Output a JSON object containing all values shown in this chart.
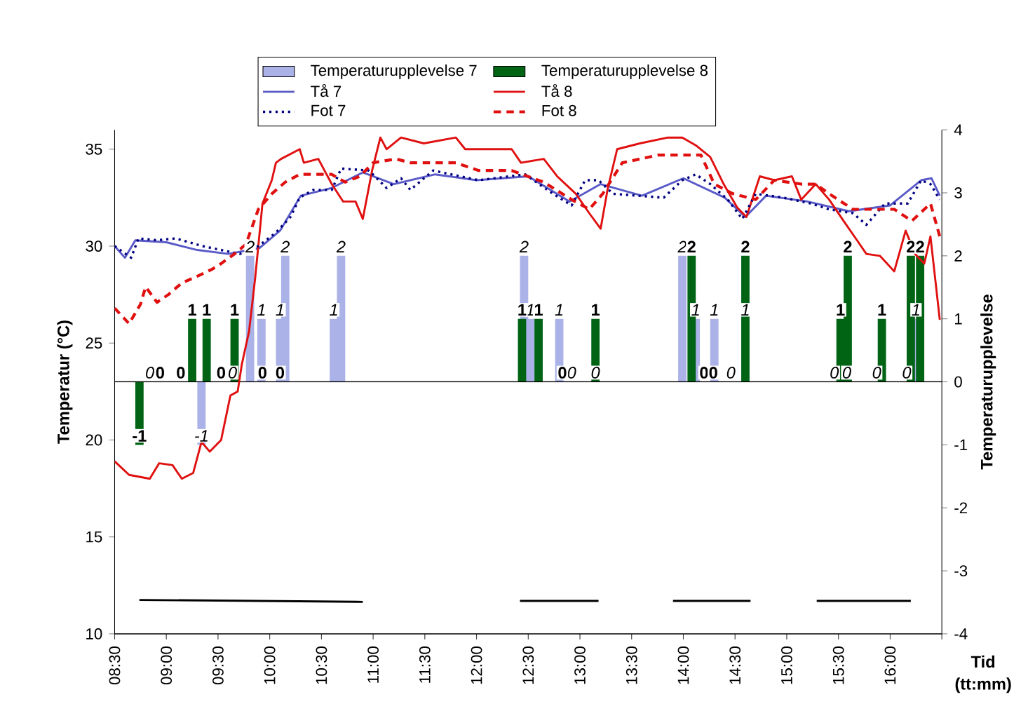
{
  "chart_data": {
    "type": "bar",
    "xlabel": "Tid (tt:mm)",
    "ylabel": "Temperatur (°C)",
    "y2label": "Temperaturupplevelse",
    "xlim": [
      8.5,
      16.5
    ],
    "xticks": [
      {
        "value": 8.5,
        "label": "08:30"
      },
      {
        "value": 9,
        "label": "09:00"
      },
      {
        "value": 9.5,
        "label": "09:30"
      },
      {
        "value": 10,
        "label": "10:00"
      },
      {
        "value": 10.5,
        "label": "10:30"
      },
      {
        "value": 11,
        "label": "11:00"
      },
      {
        "value": 11.5,
        "label": "11:30"
      },
      {
        "value": 12,
        "label": "12:00"
      },
      {
        "value": 12.5,
        "label": "12:30"
      },
      {
        "value": 13,
        "label": "13:00"
      },
      {
        "value": 13.5,
        "label": "13:30"
      },
      {
        "value": 14,
        "label": "14:00"
      },
      {
        "value": 14.5,
        "label": "14:30"
      },
      {
        "value": 15,
        "label": "15:00"
      },
      {
        "value": 15.5,
        "label": "15:30"
      },
      {
        "value": 16,
        "label": "16:00"
      },
      {
        "value": 16.5,
        "label": null
      }
    ],
    "ylim": [
      10,
      36
    ],
    "yticks": [
      10,
      15,
      20,
      25,
      30,
      35
    ],
    "y2lim": [
      -4,
      4
    ],
    "y2ticks": [
      -4,
      -3,
      -2,
      -1,
      0,
      1,
      2,
      3,
      4
    ],
    "legend": "top",
    "ref_lines": [
      {
        "axis": "y2",
        "value": 0,
        "color": "#000000"
      }
    ],
    "series": [
      {
        "name": "Temperaturupplevelse 7",
        "axis": "y2",
        "color": "#aab2e8",
        "x": [
          8.84,
          9.34,
          9.64,
          9.81,
          9.92,
          10.1,
          10.15,
          10.62,
          10.69,
          12.46,
          12.52,
          12.8,
          12.92,
          13.15,
          13.99,
          14.12,
          14.3,
          14.46,
          14.6,
          15.46,
          15.58,
          15.87,
          16.16,
          16.25
        ],
        "values": [
          0,
          -1,
          0,
          2,
          1,
          1,
          2,
          1,
          2,
          2,
          1,
          1,
          0,
          0,
          2,
          1,
          1,
          0,
          1,
          0,
          0,
          0,
          0,
          1
        ],
        "value_labels": [
          "0",
          "-1",
          "0",
          "2",
          "1",
          "1",
          "2",
          "1",
          "2",
          "2",
          "1",
          "1",
          "0",
          "0",
          "2",
          "1",
          "1",
          "0",
          "1",
          "0",
          "0",
          "0",
          "0",
          "1"
        ]
      },
      {
        "name": "Temperaturupplevelse 8",
        "axis": "y2",
        "color": "#006414",
        "x": [
          8.74,
          8.94,
          9.14,
          9.25,
          9.39,
          9.53,
          9.66,
          9.93,
          10.1,
          12.44,
          12.6,
          12.83,
          13.15,
          14.08,
          14.2,
          14.29,
          14.6,
          15.52,
          15.59,
          15.92,
          16.2,
          16.29
        ],
        "values": [
          -1,
          0,
          0,
          1,
          1,
          0,
          1,
          0,
          0,
          1,
          1,
          0,
          1,
          2,
          0,
          0,
          2,
          1,
          2,
          1,
          2,
          2
        ],
        "value_labels": [
          "-1",
          "0",
          "0",
          "1",
          "1",
          "0",
          "1",
          "0",
          "0",
          "1",
          "1",
          "0",
          "1",
          "2",
          "0",
          "0",
          "2",
          "1",
          "2",
          "1",
          "2",
          "2"
        ]
      },
      {
        "name": "Tå 7",
        "type": "line",
        "color": "#5a5ac8",
        "line_style": "solid",
        "x": [
          8.5,
          8.6,
          8.7,
          9.0,
          9.3,
          9.6,
          9.9,
          10.1,
          10.3,
          10.6,
          10.9,
          11.2,
          11.6,
          12.0,
          12.5,
          12.9,
          13.2,
          13.6,
          14.0,
          14.4,
          14.6,
          14.8,
          15.2,
          15.6,
          16.0,
          16.3,
          16.4,
          16.48
        ],
        "values": [
          30.0,
          29.4,
          30.3,
          30.2,
          29.8,
          29.6,
          29.9,
          30.8,
          32.6,
          33.0,
          33.8,
          33.2,
          33.7,
          33.4,
          33.6,
          32.3,
          33.2,
          32.6,
          33.5,
          32.5,
          31.5,
          32.6,
          32.3,
          31.8,
          32.1,
          33.4,
          33.5,
          32.6
        ]
      },
      {
        "name": "Tå 8",
        "type": "line",
        "color": "#e01010",
        "line_style": "solid",
        "x": [
          8.5,
          8.64,
          8.84,
          8.93,
          9.06,
          9.15,
          9.26,
          9.34,
          9.42,
          9.53,
          9.62,
          9.69,
          9.73,
          9.8,
          9.86,
          9.93,
          10.02,
          10.06,
          10.11,
          10.29,
          10.33,
          10.47,
          10.6,
          10.71,
          10.83,
          10.9,
          10.99,
          11.07,
          11.13,
          11.27,
          11.49,
          11.8,
          11.89,
          12.34,
          12.43,
          12.65,
          12.78,
          12.96,
          13.09,
          13.2,
          13.27,
          13.36,
          13.58,
          13.85,
          13.99,
          14.12,
          14.26,
          14.39,
          14.52,
          14.61,
          14.74,
          14.88,
          15.05,
          15.14,
          15.28,
          15.41,
          15.55,
          15.68,
          15.77,
          15.9,
          16.04,
          16.15,
          16.24,
          16.33,
          16.39,
          16.48
        ],
        "values": [
          18.9,
          18.2,
          18.0,
          18.8,
          18.7,
          18.0,
          18.3,
          19.9,
          19.4,
          20.0,
          22.3,
          22.5,
          23.9,
          25.6,
          28.4,
          32.2,
          33.4,
          34.3,
          34.5,
          35.0,
          34.3,
          34.5,
          33.2,
          32.3,
          32.3,
          31.4,
          33.9,
          35.6,
          35.0,
          35.6,
          35.3,
          35.6,
          35.0,
          35.0,
          34.3,
          34.5,
          33.6,
          32.7,
          31.7,
          30.9,
          33.0,
          35.0,
          35.3,
          35.6,
          35.6,
          35.2,
          34.6,
          33.2,
          32.0,
          31.5,
          33.6,
          33.4,
          33.6,
          32.4,
          33.2,
          32.4,
          31.3,
          30.3,
          29.6,
          29.5,
          28.7,
          30.8,
          29.6,
          29.1,
          30.5,
          26.2
        ]
      },
      {
        "name": "Fot 7",
        "type": "line",
        "color": "#000080",
        "line_style": "dotted",
        "x": [
          8.5,
          8.66,
          8.73,
          8.91,
          9.09,
          9.35,
          9.53,
          9.71,
          9.89,
          10.06,
          10.2,
          10.29,
          10.42,
          10.6,
          10.69,
          10.96,
          11.13,
          11.27,
          11.36,
          11.58,
          12.02,
          12.47,
          12.74,
          12.92,
          13.05,
          13.18,
          13.32,
          13.81,
          13.99,
          14.12,
          14.26,
          14.43,
          14.57,
          14.7,
          14.97,
          15.23,
          15.41,
          15.64,
          15.77,
          15.95,
          16.17,
          16.3,
          16.39,
          16.48
        ],
        "values": [
          30.0,
          29.4,
          30.4,
          30.3,
          30.4,
          30.0,
          29.8,
          29.6,
          30.0,
          30.7,
          31.5,
          32.5,
          32.9,
          32.9,
          34.0,
          33.9,
          33.0,
          33.5,
          32.9,
          33.9,
          33.4,
          33.7,
          32.7,
          32.1,
          33.4,
          33.4,
          32.7,
          32.5,
          33.4,
          33.7,
          33.2,
          32.4,
          31.4,
          32.7,
          32.5,
          32.2,
          31.9,
          31.7,
          31.1,
          32.2,
          32.2,
          33.4,
          33.2,
          32.4
        ]
      },
      {
        "name": "Fot 8",
        "type": "line",
        "color": "#e01010",
        "line_style": "dashed",
        "x": [
          8.5,
          8.64,
          8.75,
          8.8,
          8.91,
          9.02,
          9.15,
          9.28,
          9.44,
          9.53,
          9.66,
          9.77,
          9.89,
          10.02,
          10.15,
          10.29,
          10.6,
          10.73,
          10.87,
          11.0,
          11.22,
          11.36,
          11.8,
          12.02,
          12.34,
          12.65,
          12.92,
          13.09,
          13.22,
          13.41,
          13.76,
          14.17,
          14.3,
          14.48,
          14.7,
          14.88,
          15.14,
          15.28,
          15.41,
          15.64,
          15.86,
          16.04,
          16.21,
          16.39,
          16.48
        ],
        "values": [
          26.8,
          26.0,
          27.0,
          27.9,
          27.1,
          27.5,
          28.1,
          28.4,
          28.8,
          29.1,
          29.6,
          30.1,
          31.9,
          32.7,
          33.3,
          33.7,
          33.7,
          33.3,
          33.6,
          34.3,
          34.5,
          34.3,
          34.3,
          33.9,
          33.9,
          33.3,
          32.4,
          31.9,
          32.7,
          34.3,
          34.7,
          34.7,
          33.2,
          32.7,
          32.4,
          33.4,
          33.2,
          33.2,
          32.7,
          31.9,
          31.9,
          31.9,
          31.3,
          32.2,
          30.5
        ]
      },
      {
        "type": "line",
        "color": "#000000",
        "line_style": "solid",
        "x": [
          8.74,
          10.9,
          10.95,
          12.42,
          13.18,
          13.5,
          13.9,
          14.65,
          15.0,
          15.29,
          16.2
        ],
        "values": [
          11.75,
          11.65,
          null,
          11.7,
          11.7,
          null,
          11.7,
          11.7,
          null,
          11.7,
          11.7
        ]
      }
    ]
  }
}
